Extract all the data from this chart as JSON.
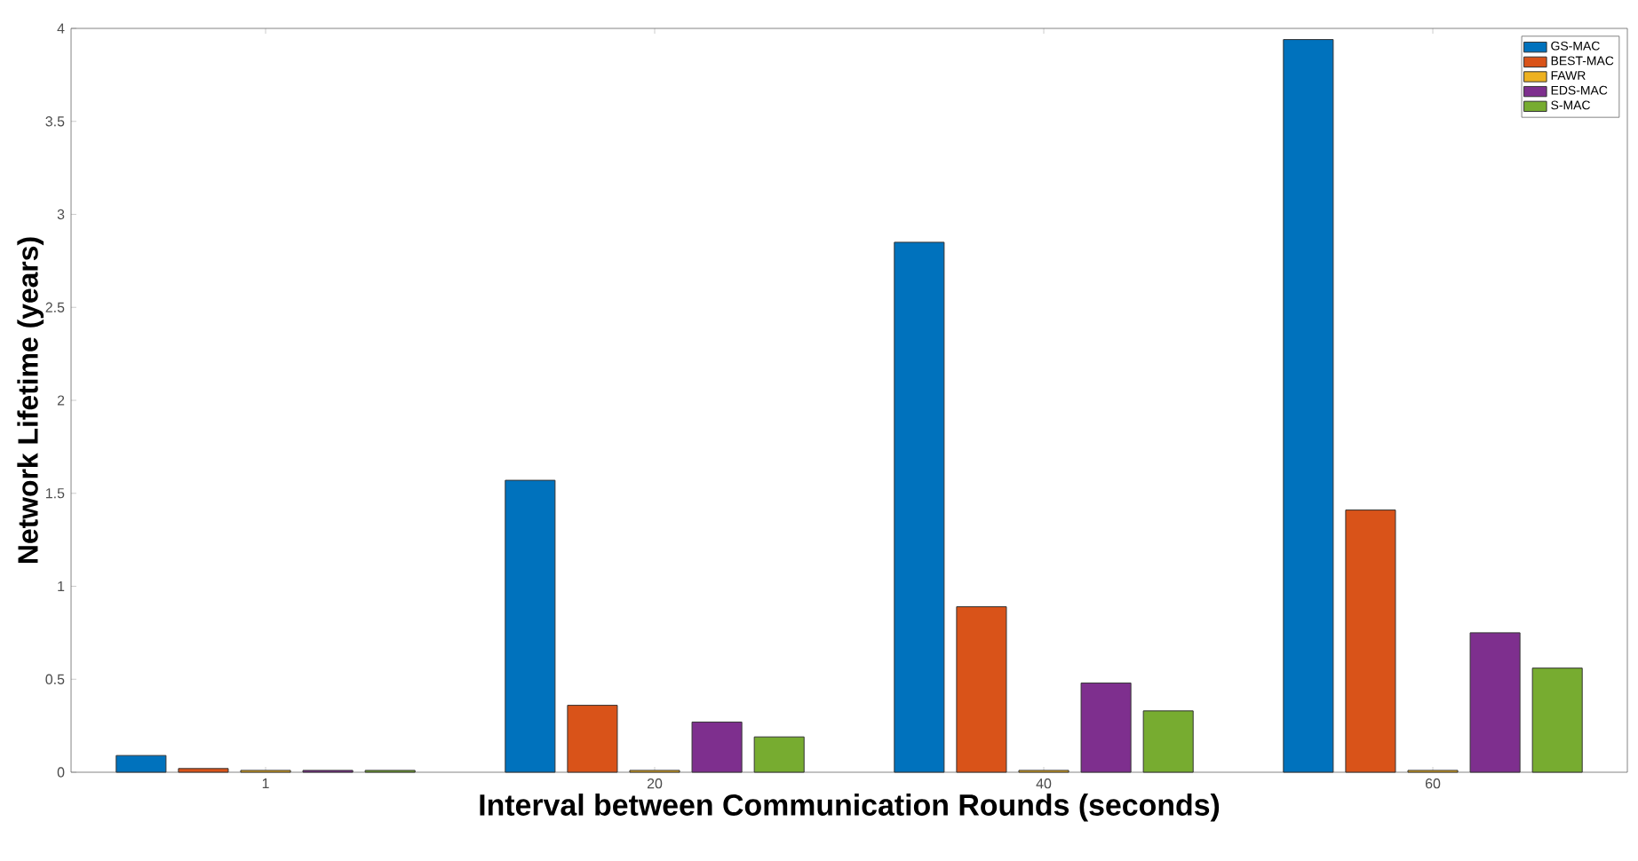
{
  "chart_data": {
    "type": "bar",
    "xlabel": "Interval between Communication Rounds (seconds)",
    "ylabel": "Network Lifetime (years)",
    "categories": [
      "1",
      "20",
      "40",
      "60"
    ],
    "series": [
      {
        "name": "GS-MAC",
        "color": "#0072bd",
        "values": [
          0.09,
          1.57,
          2.85,
          3.94
        ]
      },
      {
        "name": "BEST-MAC",
        "color": "#d95319",
        "values": [
          0.02,
          0.36,
          0.89,
          1.41
        ]
      },
      {
        "name": "FAWR",
        "color": "#edb120",
        "values": [
          0.01,
          0.01,
          0.01,
          0.01
        ]
      },
      {
        "name": "EDS-MAC",
        "color": "#7e2f8e",
        "values": [
          0.01,
          0.27,
          0.48,
          0.75
        ]
      },
      {
        "name": "S-MAC",
        "color": "#77ac30",
        "values": [
          0.01,
          0.19,
          0.33,
          0.56
        ]
      }
    ],
    "ylim": [
      0,
      4
    ],
    "yticks": [
      0,
      0.5,
      1,
      1.5,
      2,
      2.5,
      3,
      3.5,
      4
    ],
    "legend": "top right",
    "grid": false
  }
}
